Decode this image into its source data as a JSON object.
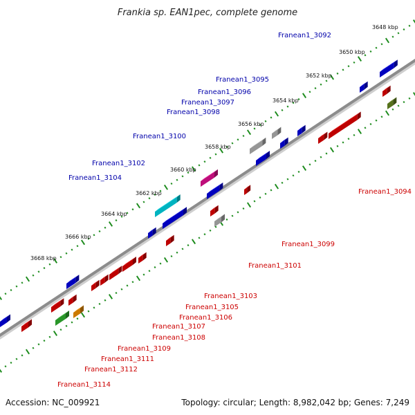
{
  "title": "Frankia sp. EAN1pec, complete genome",
  "footer": {
    "accession": "Accession: NC_009921",
    "summary": "Topology: circular; Length: 8,982,042 bp; Genes: 7,249"
  },
  "colors": {
    "forward_label": "#0000aa",
    "reverse_label": "#cc0000",
    "backbone": "#8c8c8c",
    "tick": "#1e8c1e",
    "gene_blue": "#0000ee",
    "gene_red": "#ee0000",
    "gene_gray": "#bbbbbb",
    "gene_cyan": "#00e0f0",
    "gene_magenta": "#ee1299",
    "gene_green": "#33bb33",
    "gene_olive": "#6b8e23",
    "gene_orange": "#ff9900"
  },
  "kbp_labels": [
    "3648 kbp",
    "3650 kbp",
    "3652 kbp",
    "3654 kbp",
    "3656 kbp",
    "3658 kbp",
    "3660 kbp",
    "3662 kbp",
    "3664 kbp",
    "3666 kbp",
    "3668 kbp"
  ],
  "gene_labels_forward": [
    "Franean1_3092",
    "Franean1_3095",
    "Franean1_3096",
    "Franean1_3097",
    "Franean1_3098",
    "Franean1_3100",
    "Franean1_3102",
    "Franean1_3104"
  ],
  "gene_labels_reverse": [
    "Franean1_3094",
    "Franean1_3099",
    "Franean1_3101",
    "Franean1_3103",
    "Franean1_3105",
    "Franean1_3106",
    "Franean1_3107",
    "Franean1_3108",
    "Franean1_3109",
    "Franean1_3111",
    "Franean1_3112",
    "Franean1_3114"
  ]
}
